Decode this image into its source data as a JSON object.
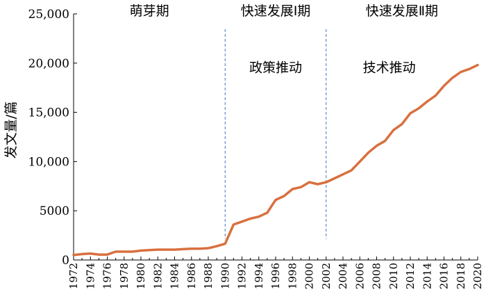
{
  "chart_data": {
    "type": "line",
    "title": "",
    "xlabel": "",
    "ylabel": "发文量/篇",
    "xlim": [
      1972,
      2020
    ],
    "ylim": [
      0,
      25000
    ],
    "grid": false,
    "y_ticks": [
      {
        "value": 0,
        "label": "0"
      },
      {
        "value": 5000,
        "label": "5000"
      },
      {
        "value": 10000,
        "label": "10,000"
      },
      {
        "value": 15000,
        "label": "15,000"
      },
      {
        "value": 20000,
        "label": "20,000"
      },
      {
        "value": 25000,
        "label": "25,000"
      }
    ],
    "x_ticks": [
      "1972",
      "1974",
      "1976",
      "1978",
      "1980",
      "1982",
      "1984",
      "1986",
      "1988",
      "1990",
      "1992",
      "1994",
      "1996",
      "1998",
      "2000",
      "2002",
      "2004",
      "2006",
      "2008",
      "2010",
      "2012",
      "2014",
      "2016",
      "2018",
      "2020"
    ],
    "series": [
      {
        "color": "#d8703f",
        "x": [
          1972,
          1973,
          1974,
          1975,
          1976,
          1977,
          1978,
          1979,
          1980,
          1981,
          1982,
          1983,
          1984,
          1985,
          1986,
          1987,
          1988,
          1989,
          1990,
          1991,
          1992,
          1993,
          1994,
          1995,
          1996,
          1997,
          1998,
          1999,
          2000,
          2001,
          2002,
          2003,
          2004,
          2005,
          2006,
          2007,
          2008,
          2009,
          2010,
          2011,
          2012,
          2013,
          2014,
          2015,
          2016,
          2017,
          2018,
          2019,
          2020
        ],
        "y": [
          500,
          600,
          650,
          550,
          550,
          850,
          850,
          850,
          950,
          1000,
          1050,
          1050,
          1050,
          1100,
          1150,
          1150,
          1200,
          1400,
          1650,
          3600,
          3900,
          4200,
          4400,
          4800,
          6100,
          6500,
          7200,
          7400,
          7900,
          7700,
          7900,
          8300,
          8700,
          9100,
          10000,
          10900,
          11600,
          12100,
          13200,
          13800,
          14900,
          15400,
          16100,
          16700,
          17700,
          18500,
          19100,
          19400,
          19800
        ]
      }
    ],
    "dividers": [
      {
        "x": 1990,
        "color": "#4472c4"
      },
      {
        "x": 2002,
        "color": "#4472c4"
      }
    ],
    "period_labels": [
      {
        "text": "萌芽期",
        "x_center": 1981
      },
      {
        "text": "快速发展Ⅰ期",
        "x_center": 1996
      },
      {
        "text": "快速发展Ⅱ期",
        "x_center": 2011
      }
    ],
    "annotations": [
      {
        "text": "政策推动",
        "x_center": 1996,
        "y": 19100
      },
      {
        "text": "技术推动",
        "x_center": 2009.5,
        "y": 19100
      }
    ]
  }
}
